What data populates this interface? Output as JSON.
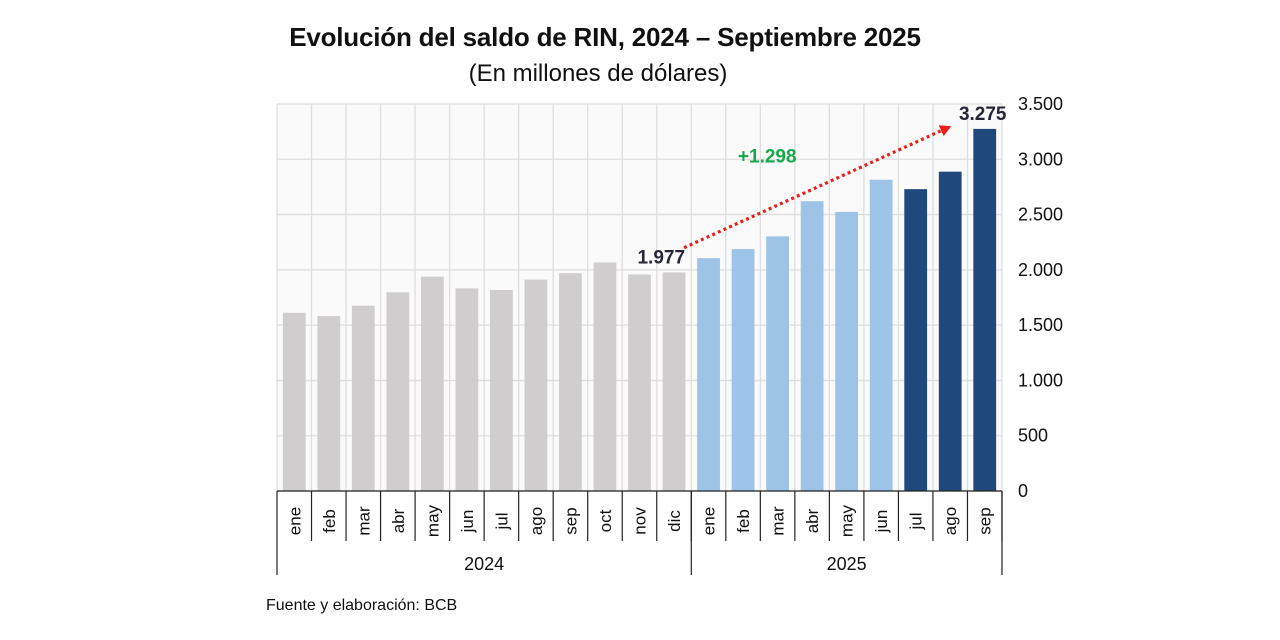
{
  "chart_data": {
    "type": "bar",
    "title": "Evolución del saldo de RIN, 2024 – Septiembre 2025",
    "subtitle": "(En millones de dólares)",
    "source": "Fuente y elaboración: BCB",
    "xlabel": "",
    "ylabel": "",
    "ylim": [
      0,
      3500
    ],
    "yticks": [
      0,
      500,
      1000,
      1500,
      2000,
      2500,
      3000,
      3500
    ],
    "ytick_labels": [
      "0",
      "500",
      "1.000",
      "1.500",
      "2.000",
      "2.500",
      "3.000",
      "3.500"
    ],
    "y_axis_position": "right",
    "grid": true,
    "groups": [
      {
        "year": "2024",
        "months": [
          "ene",
          "feb",
          "mar",
          "abr",
          "may",
          "jun",
          "jul",
          "ago",
          "sep",
          "oct",
          "nov",
          "dic"
        ]
      },
      {
        "year": "2025",
        "months": [
          "ene",
          "feb",
          "mar",
          "abr",
          "may",
          "jun",
          "jul",
          "ago",
          "sep"
        ]
      }
    ],
    "categories": [
      "ene 2024",
      "feb 2024",
      "mar 2024",
      "abr 2024",
      "may 2024",
      "jun 2024",
      "jul 2024",
      "ago 2024",
      "sep 2024",
      "oct 2024",
      "nov 2024",
      "dic 2024",
      "ene 2025",
      "feb 2025",
      "mar 2025",
      "abr 2025",
      "may 2025",
      "jun 2025",
      "jul 2025",
      "ago 2025",
      "sep 2025"
    ],
    "values": [
      1612,
      1582,
      1676,
      1797,
      1939,
      1833,
      1818,
      1912,
      1970,
      2067,
      1958,
      1977,
      2106,
      2188,
      2303,
      2621,
      2524,
      2815,
      2730,
      2888,
      3275
    ],
    "bar_colors": [
      "#d0cdcf",
      "#d0cdcf",
      "#d0cdcf",
      "#d0cdcf",
      "#d0cdcf",
      "#d0cdcf",
      "#d0cdcf",
      "#d0cdcf",
      "#d0cdcf",
      "#d0cdcf",
      "#d0cdcf",
      "#d0cdcf",
      "#9dc3e6",
      "#9dc3e6",
      "#9dc3e6",
      "#9dc3e6",
      "#9dc3e6",
      "#9dc3e6",
      "#1f497d",
      "#1f497d",
      "#1f497d"
    ],
    "data_labels": [
      {
        "index": 11,
        "text": "1.977"
      },
      {
        "index": 20,
        "text": "3.275"
      }
    ],
    "annotations": [
      {
        "type": "arrow",
        "style": "dotted",
        "color": "#e8201c",
        "from_index": 11,
        "from_value": 2200,
        "to_index": 19,
        "to_value": 3300
      },
      {
        "type": "text",
        "text": "+1.298",
        "color": "#17a84a",
        "at_index": 13.7,
        "at_value": 2970
      }
    ]
  }
}
